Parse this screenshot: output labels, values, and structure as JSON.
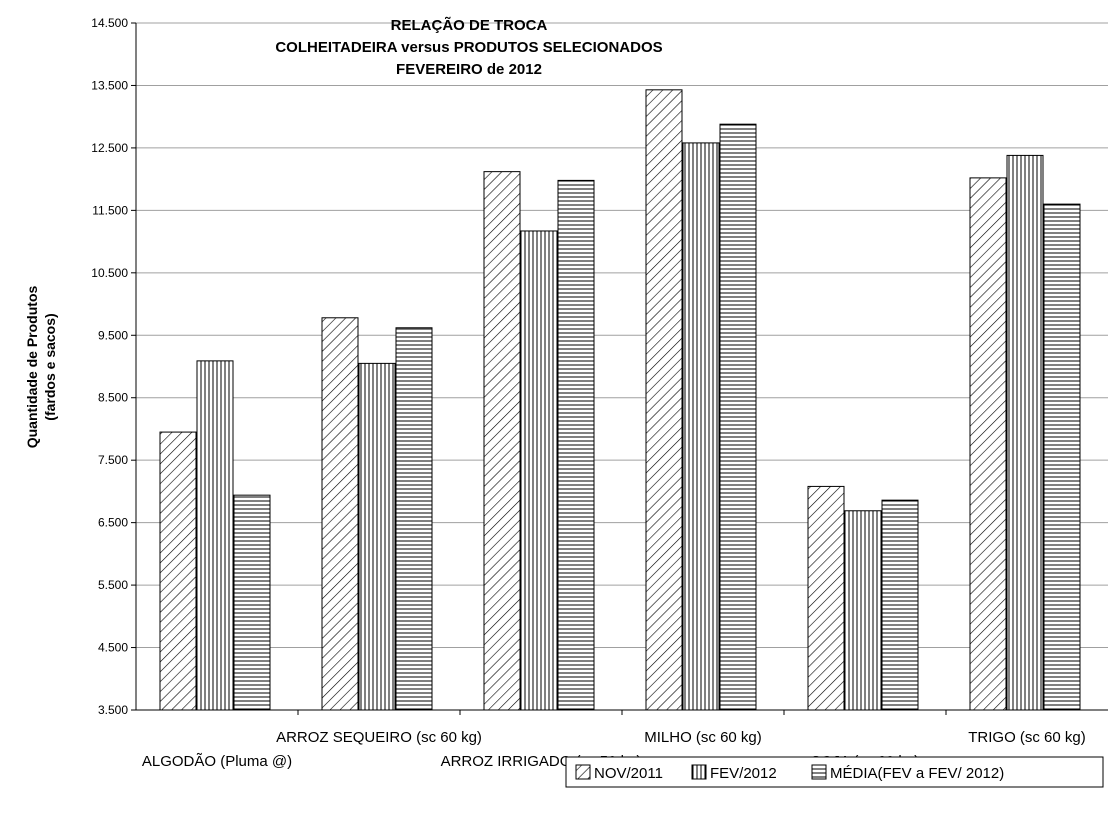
{
  "chart_data": {
    "type": "bar",
    "title": [
      "RELAÇÃO DE TROCA",
      "COLHEITADEIRA versus PRODUTOS SELECIONADOS",
      "FEVEREIRO  de  2012"
    ],
    "ylabel": [
      "Quantidade de Produtos",
      "(fardos e sacos)"
    ],
    "xlabel": "",
    "ylim": [
      3500,
      14500
    ],
    "yticks": [
      "3.500",
      "4.500",
      "5.500",
      "6.500",
      "7.500",
      "8.500",
      "9.500",
      "10.500",
      "11.500",
      "12.500",
      "13.500",
      "14.500"
    ],
    "grid": "horizontal",
    "legend_position": "bottom-right",
    "categories": [
      "ALGODÃO (Pluma @)",
      "ARROZ SEQUEIRO (sc 60 kg)",
      "ARROZ IRRIGADO (sc 50 kg)",
      "MILHO (sc 60 kg)",
      "SOJA (sc 60 kg)",
      "TRIGO (sc 60 kg)"
    ],
    "series": [
      {
        "name": "NOV/2011",
        "pattern": "diagonal",
        "values": [
          7950,
          9780,
          12120,
          13430,
          7080,
          12020
        ]
      },
      {
        "name": "FEV/2012",
        "pattern": "vertical",
        "values": [
          9090,
          9050,
          11170,
          12580,
          6690,
          12380
        ]
      },
      {
        "name": "MÉDIA(FEV a  FEV/ 2012)",
        "pattern": "horizontal",
        "values": [
          6940,
          9620,
          11980,
          12880,
          6860,
          11600
        ]
      }
    ],
    "colors": {
      "bar_fill": "#ffffff",
      "bar_stroke": "#000000",
      "grid": "#a0a0a0",
      "axis": "#000000"
    }
  }
}
